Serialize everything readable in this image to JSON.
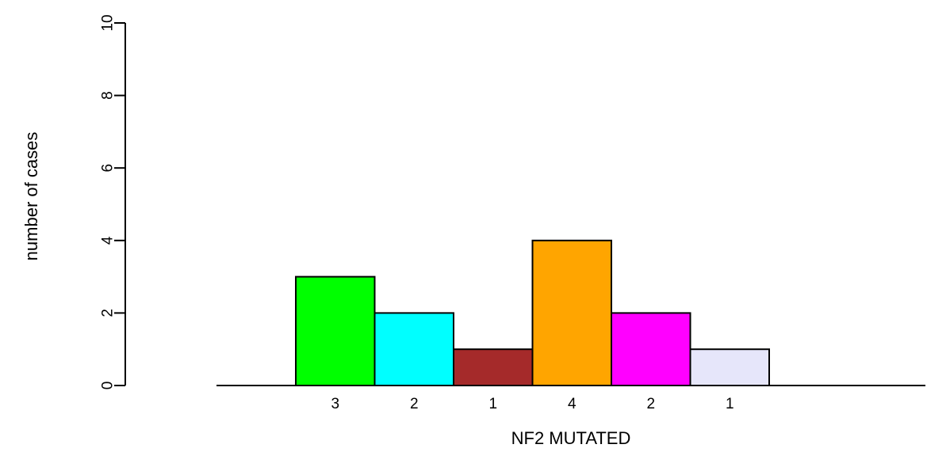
{
  "chart_data": {
    "type": "bar",
    "title": "",
    "xlabel": "NF2 MUTATED",
    "ylabel": "number of cases",
    "ylim": [
      0,
      10
    ],
    "yticks": [
      0,
      2,
      4,
      6,
      8,
      10
    ],
    "grid": false,
    "legend": "none",
    "categories": [
      "3",
      "2",
      "1",
      "4",
      "2",
      "1"
    ],
    "values": [
      3,
      2,
      1,
      4,
      2,
      1
    ],
    "colors": [
      "#00ff00",
      "#00ffff",
      "#a52a2a",
      "#ffa500",
      "#ff00ff",
      "#e6e6fa"
    ]
  }
}
